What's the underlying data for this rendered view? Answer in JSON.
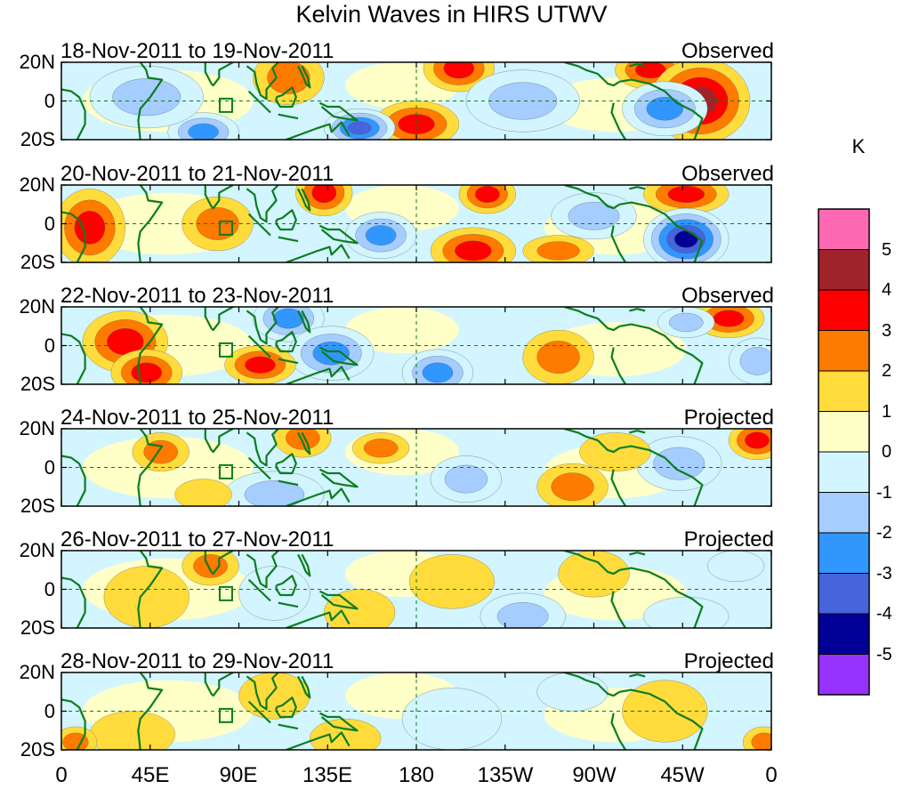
{
  "title": "Kelvin Waves in HIRS UTWV",
  "panels": [
    {
      "period": "18-Nov-2011 to 19-Nov-2011",
      "status": "Observed"
    },
    {
      "period": "20-Nov-2011 to 21-Nov-2011",
      "status": "Observed"
    },
    {
      "period": "22-Nov-2011 to 23-Nov-2011",
      "status": "Observed"
    },
    {
      "period": "24-Nov-2011 to 25-Nov-2011",
      "status": "Projected"
    },
    {
      "period": "26-Nov-2011 to 27-Nov-2011",
      "status": "Projected"
    },
    {
      "period": "28-Nov-2011 to 29-Nov-2011",
      "status": "Projected"
    }
  ],
  "lat_labels": [
    "20N",
    "0",
    "20S"
  ],
  "lon_labels": [
    "0",
    "45E",
    "90E",
    "135E",
    "180",
    "135W",
    "90W",
    "45W",
    "0"
  ],
  "colorbar": {
    "units": "K",
    "labels": [
      "5",
      "4",
      "3",
      "2",
      "1",
      "0",
      "-1",
      "-2",
      "-3",
      "-4",
      "-5"
    ],
    "colors": [
      "#ff69b4",
      "#a0222a",
      "#ff0000",
      "#ff7b00",
      "#ffdc3c",
      "#ffffc8",
      "#d2f5ff",
      "#a5cdff",
      "#3296ff",
      "#4664dc",
      "#000096",
      "#9632ff"
    ]
  },
  "colors": {
    "coast": "#0c7d1e",
    "grid": "#107a20"
  }
}
